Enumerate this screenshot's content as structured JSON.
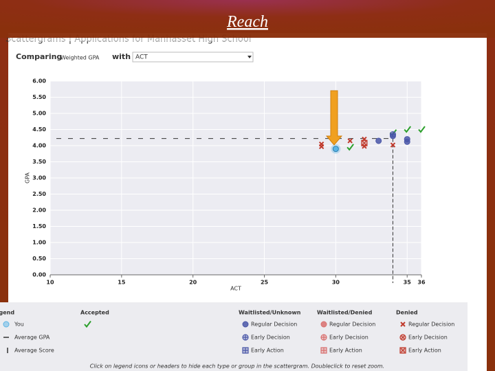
{
  "header": {
    "title": "Reach",
    "breadcrumb": "Scattergrams | Applications for Manhasset High School",
    "comparing": "Comparing",
    "y_field": "Weighted GPA",
    "with": "with",
    "x_field": "ACT"
  },
  "chart_data": {
    "type": "scatter",
    "xlabel": "ACT",
    "ylabel": "GPA",
    "xlim": [
      10,
      36
    ],
    "ylim": [
      0,
      6
    ],
    "xticks": [
      10,
      15,
      20,
      25,
      30,
      35,
      36
    ],
    "yticks": [
      {
        "value": 0,
        "label": "0.00"
      },
      {
        "value": 0.5,
        "label": "0.50"
      },
      {
        "value": 1,
        "label": "1.00"
      },
      {
        "value": 1.5,
        "label": "1.50"
      },
      {
        "value": 2,
        "label": "2.00"
      },
      {
        "value": 2.5,
        "label": "2.50"
      },
      {
        "value": 3,
        "label": "3.00"
      },
      {
        "value": 3.5,
        "label": "3.50"
      },
      {
        "value": 4,
        "label": "4.00"
      },
      {
        "value": 4.5,
        "label": "4.50"
      },
      {
        "value": 5,
        "label": "5.00"
      },
      {
        "value": 5.5,
        "label": "5.50"
      },
      {
        "value": 6,
        "label": "6.00"
      }
    ],
    "grid": true,
    "legend_title": "Legend",
    "you": {
      "name": "You",
      "color": "#5bb4e5",
      "marker": "circle",
      "x": [
        30
      ],
      "values": [
        3.9
      ]
    },
    "average_gpa": {
      "name": "Average GPA",
      "value": 4.22
    },
    "average_score": {
      "name": "Average Score",
      "value": 34
    },
    "groups": [
      {
        "title": "Accepted",
        "series": [
          {
            "marker": "check",
            "color": "#2ca02c",
            "x": [
              31,
              34,
              35,
              36
            ],
            "values": [
              3.95,
              4.4,
              4.5,
              4.5
            ]
          }
        ]
      },
      {
        "title": "Waitlisted/Unknown",
        "series": [
          {
            "name": "Regular Decision",
            "marker": "circle",
            "color": "#4a57a8",
            "x": [
              33,
              34,
              35,
              35
            ],
            "values": [
              4.15,
              4.3,
              4.2,
              4.12
            ]
          },
          {
            "name": "Early Decision",
            "marker": "circle-plus",
            "color": "#4a57a8",
            "x": [
              34
            ],
            "values": [
              4.35
            ]
          },
          {
            "name": "Early Action",
            "marker": "square-plus",
            "color": "#4a57a8",
            "x": [],
            "values": []
          }
        ]
      },
      {
        "title": "Waitlisted/Denied",
        "series": [
          {
            "name": "Regular Decision",
            "marker": "circle",
            "color": "#d9706f",
            "x": [],
            "values": []
          },
          {
            "name": "Early Decision",
            "marker": "circle-plus",
            "color": "#d9706f",
            "x": [],
            "values": []
          },
          {
            "name": "Early Action",
            "marker": "square-plus",
            "color": "#d9706f",
            "x": [],
            "values": []
          }
        ]
      },
      {
        "title": "Denied",
        "series": [
          {
            "name": "Regular Decision",
            "marker": "x",
            "color": "#c0392b",
            "x": [
              29,
              29,
              31,
              32,
              32,
              34
            ],
            "values": [
              4.05,
              3.97,
              4.15,
              4.2,
              3.98,
              4.02
            ]
          },
          {
            "name": "Early Decision",
            "marker": "circle-x",
            "color": "#c0392b",
            "x": [],
            "values": []
          },
          {
            "name": "Early Action",
            "marker": "square-x",
            "color": "#c0392b",
            "x": [
              32
            ],
            "values": [
              4.08
            ]
          }
        ]
      }
    ],
    "note": "Click on legend icons or headers to hide each type or group in the scattergram. Doubleclick to reset zoom."
  }
}
